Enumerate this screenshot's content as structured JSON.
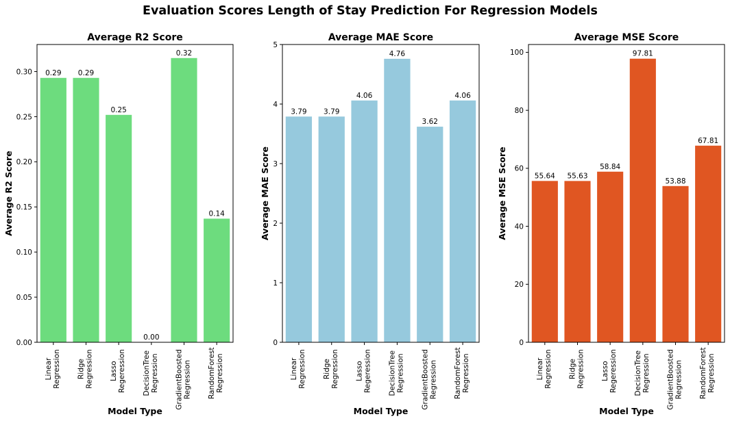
{
  "figure": {
    "suptitle": "Evaluation Scores Length of Stay Prediction For Regression Models"
  },
  "chart_data": [
    {
      "type": "bar",
      "title": "Average R2 Score",
      "xlabel": "Model Type",
      "ylabel": "Average R2 Score",
      "categories": [
        [
          "Linear",
          "Regression"
        ],
        [
          "Ridge",
          "Regression"
        ],
        [
          "Lasso",
          "Regeression"
        ],
        [
          "DecisionTree",
          "Regression"
        ],
        [
          "GradientBoosted",
          "Regression"
        ],
        [
          "RandomForest",
          "Regression"
        ]
      ],
      "values": [
        0.293,
        0.293,
        0.252,
        0.0,
        0.315,
        0.137
      ],
      "value_labels": [
        "0.29",
        "0.29",
        "0.25",
        "0.00",
        "0.32",
        "0.14"
      ],
      "ylim": [
        0,
        0.33
      ],
      "yticks": [
        0.0,
        0.05,
        0.1,
        0.15,
        0.2,
        0.25,
        0.3
      ],
      "ytick_labels": [
        "0.00",
        "0.05",
        "0.10",
        "0.15",
        "0.20",
        "0.25",
        "0.30"
      ],
      "color": "#6ddc7e",
      "grid": false
    },
    {
      "type": "bar",
      "title": "Average MAE Score",
      "xlabel": "Model Type",
      "ylabel": "Average MAE Score",
      "categories": [
        [
          "Linear",
          "Regression"
        ],
        [
          "Ridge",
          "Regression"
        ],
        [
          "Lasso",
          "Regeression"
        ],
        [
          "DecisionTree",
          "Regression"
        ],
        [
          "GradientBoosted",
          "Regression"
        ],
        [
          "RandomForest",
          "Regression"
        ]
      ],
      "values": [
        3.79,
        3.79,
        4.06,
        4.76,
        3.62,
        4.06
      ],
      "value_labels": [
        "3.79",
        "3.79",
        "4.06",
        "4.76",
        "3.62",
        "4.06"
      ],
      "ylim": [
        0,
        5
      ],
      "yticks": [
        0,
        1,
        2,
        3,
        4,
        5
      ],
      "ytick_labels": [
        "0",
        "1",
        "2",
        "3",
        "4",
        "5"
      ],
      "color": "#96c9dd",
      "grid": false
    },
    {
      "type": "bar",
      "title": "Average MSE Score",
      "xlabel": "Model Type",
      "ylabel": "Average MSE Score",
      "categories": [
        [
          "Linear",
          "Regression"
        ],
        [
          "Ridge",
          "Regression"
        ],
        [
          "Lasso",
          "Regeression"
        ],
        [
          "DecisionTree",
          "Regression"
        ],
        [
          "GradientBoosted",
          "Regression"
        ],
        [
          "RandomForest",
          "Regression"
        ]
      ],
      "values": [
        55.64,
        55.63,
        58.84,
        97.81,
        53.88,
        67.81
      ],
      "value_labels": [
        "55.64",
        "55.63",
        "58.84",
        "97.81",
        "53.88",
        "67.81"
      ],
      "ylim": [
        0,
        102.7
      ],
      "yticks": [
        0,
        20,
        40,
        60,
        80,
        100
      ],
      "ytick_labels": [
        "0",
        "20",
        "40",
        "60",
        "80",
        "100"
      ],
      "color": "#e05622",
      "grid": false
    }
  ]
}
